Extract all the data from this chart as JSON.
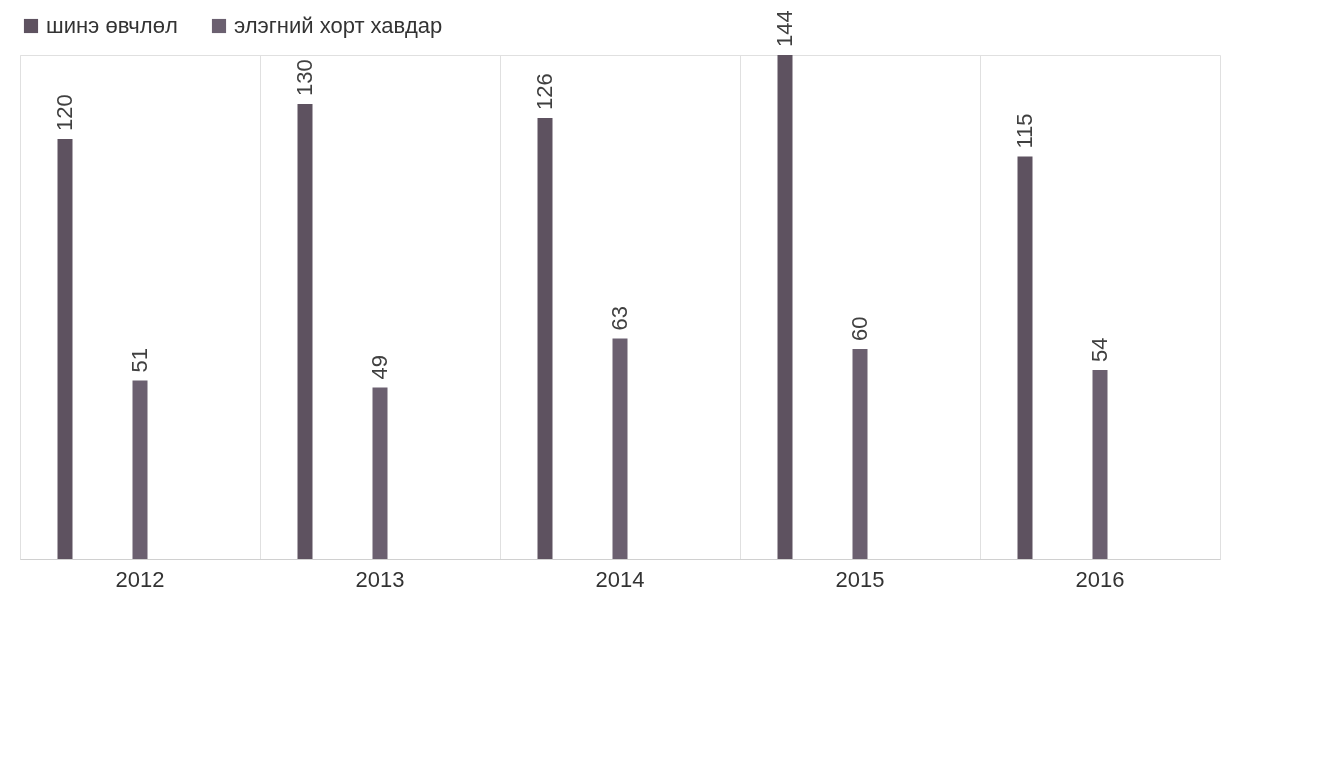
{
  "chart_data": {
    "type": "bar",
    "categories": [
      "2012",
      "2013",
      "2014",
      "2015",
      "2016"
    ],
    "series": [
      {
        "name": "шинэ өвчлөл",
        "color": "#5e5260",
        "values": [
          120,
          130,
          126,
          144,
          115
        ]
      },
      {
        "name": "элэгний хорт хавдар",
        "color": "#6b6070",
        "values": [
          51,
          49,
          63,
          60,
          54
        ]
      }
    ],
    "data_labels": true,
    "legend": "top",
    "grid": "x"
  }
}
